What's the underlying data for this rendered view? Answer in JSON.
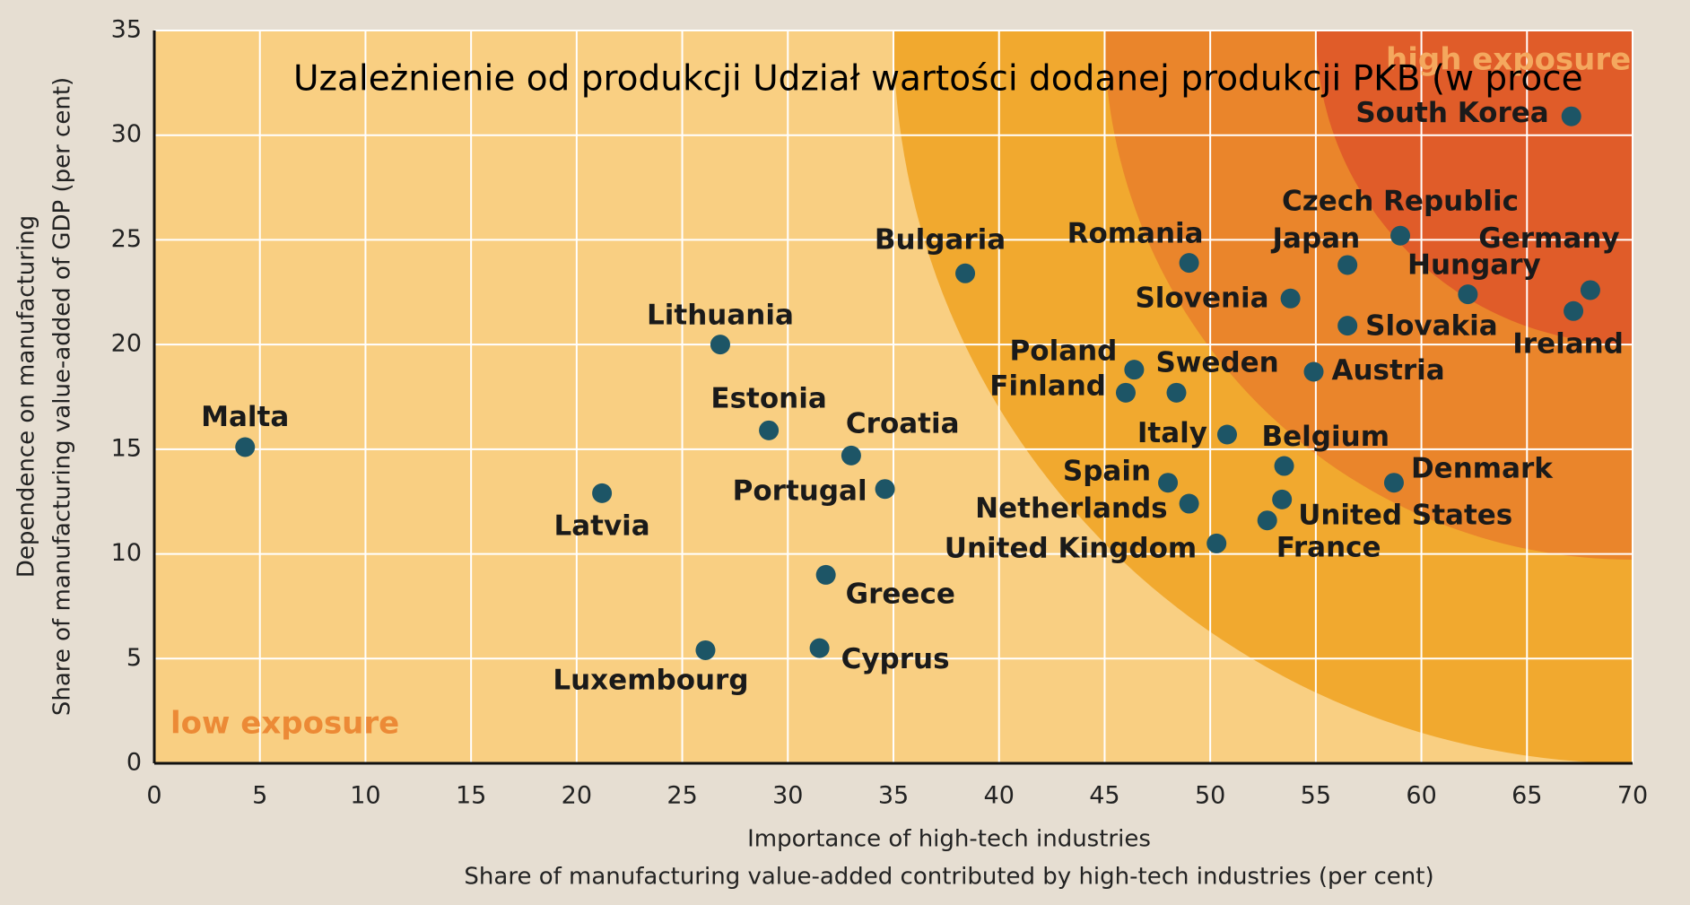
{
  "chart_data": {
    "type": "scatter",
    "title": "Uzależnienie od produkcji Udział wartości dodanej produkcji PKB (w proce",
    "xlabel": [
      "Importance of high-tech industries",
      "Share of manufacturing value-added contributed by high-tech industries (per cent)"
    ],
    "ylabel": [
      "Dependence on manufacturing",
      "Share of manufacturing value-added of GDP (per cent)"
    ],
    "annotations": [
      "high exposure",
      "low exposure"
    ],
    "color": "#1d5566",
    "labels": [
      "Malta",
      "Latvia",
      "Luxembourg",
      "Lithuania",
      "Estonia",
      "Cyprus",
      "Greece",
      "Croatia",
      "Portugal",
      "Bulgaria",
      "Poland",
      "Finland",
      "Spain",
      "Sweden",
      "Netherlands",
      "Romania",
      "United Kingdom",
      "Italy",
      "France",
      "Belgium",
      "United States",
      "Slovenia",
      "Austria",
      "Japan",
      "Slovakia",
      "Czech Republic",
      "Denmark",
      "Hungary",
      "Ireland",
      "Germany",
      "South Korea"
    ],
    "x": [
      4.3,
      21.2,
      26.1,
      26.8,
      29.1,
      31.5,
      31.8,
      33.0,
      34.6,
      38.4,
      46.4,
      46.0,
      48.0,
      48.4,
      49.0,
      49.0,
      50.3,
      50.8,
      52.7,
      53.5,
      53.4,
      53.8,
      54.9,
      56.5,
      56.5,
      59.0,
      58.7,
      62.2,
      67.2,
      68.0,
      67.1
    ],
    "values": [
      15.1,
      12.9,
      5.4,
      20.0,
      15.9,
      5.5,
      9.0,
      14.7,
      13.1,
      23.4,
      18.8,
      17.7,
      13.4,
      17.7,
      12.4,
      23.9,
      10.5,
      15.7,
      11.6,
      14.2,
      12.6,
      22.2,
      18.7,
      23.8,
      20.9,
      25.2,
      13.4,
      22.4,
      21.6,
      22.6,
      30.9
    ],
    "xlim": [
      0,
      70
    ],
    "xticks": [
      0,
      5,
      10,
      15,
      20,
      25,
      30,
      35,
      40,
      45,
      50,
      55,
      60,
      65,
      70
    ],
    "ylim": [
      0,
      35
    ],
    "yticks": [
      0,
      5,
      10,
      15,
      20,
      25,
      30,
      35
    ],
    "grid": true
  }
}
